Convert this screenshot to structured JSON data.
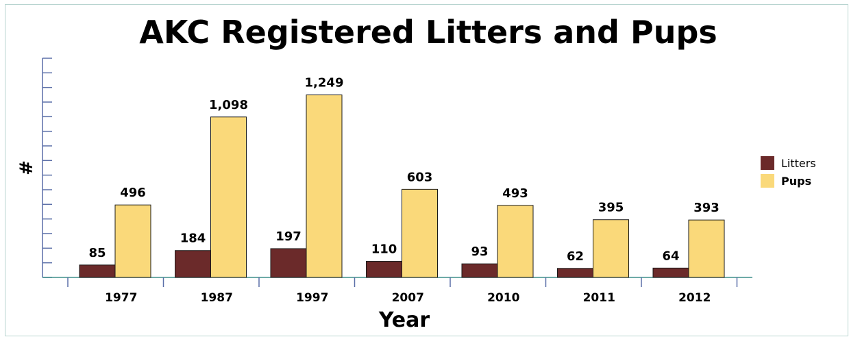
{
  "colors": {
    "litters": "#6b2a2a",
    "pups": "#fad97a",
    "axis": "#5b6fa8",
    "frame": "#b7d3cf"
  },
  "chart_data": {
    "type": "bar",
    "title": "AKC Registered Litters and Pups",
    "xlabel": "Year",
    "ylabel": "#",
    "categories": [
      "1977",
      "1987",
      "1997",
      "2007",
      "2010",
      "2011",
      "2012"
    ],
    "series": [
      {
        "name": "Litters",
        "values": [
          85,
          184,
          197,
          110,
          93,
          62,
          64
        ],
        "labels": [
          "85",
          "184",
          "197",
          "110",
          "93",
          "62",
          "64"
        ]
      },
      {
        "name": "Pups",
        "values": [
          496,
          1098,
          1249,
          603,
          493,
          395,
          393
        ],
        "labels": [
          "496",
          "1,098",
          "1,249",
          "603",
          "493",
          "395",
          "393"
        ]
      }
    ],
    "ylim": [
      0,
      1500
    ],
    "grid": false,
    "legend_position": "right"
  }
}
